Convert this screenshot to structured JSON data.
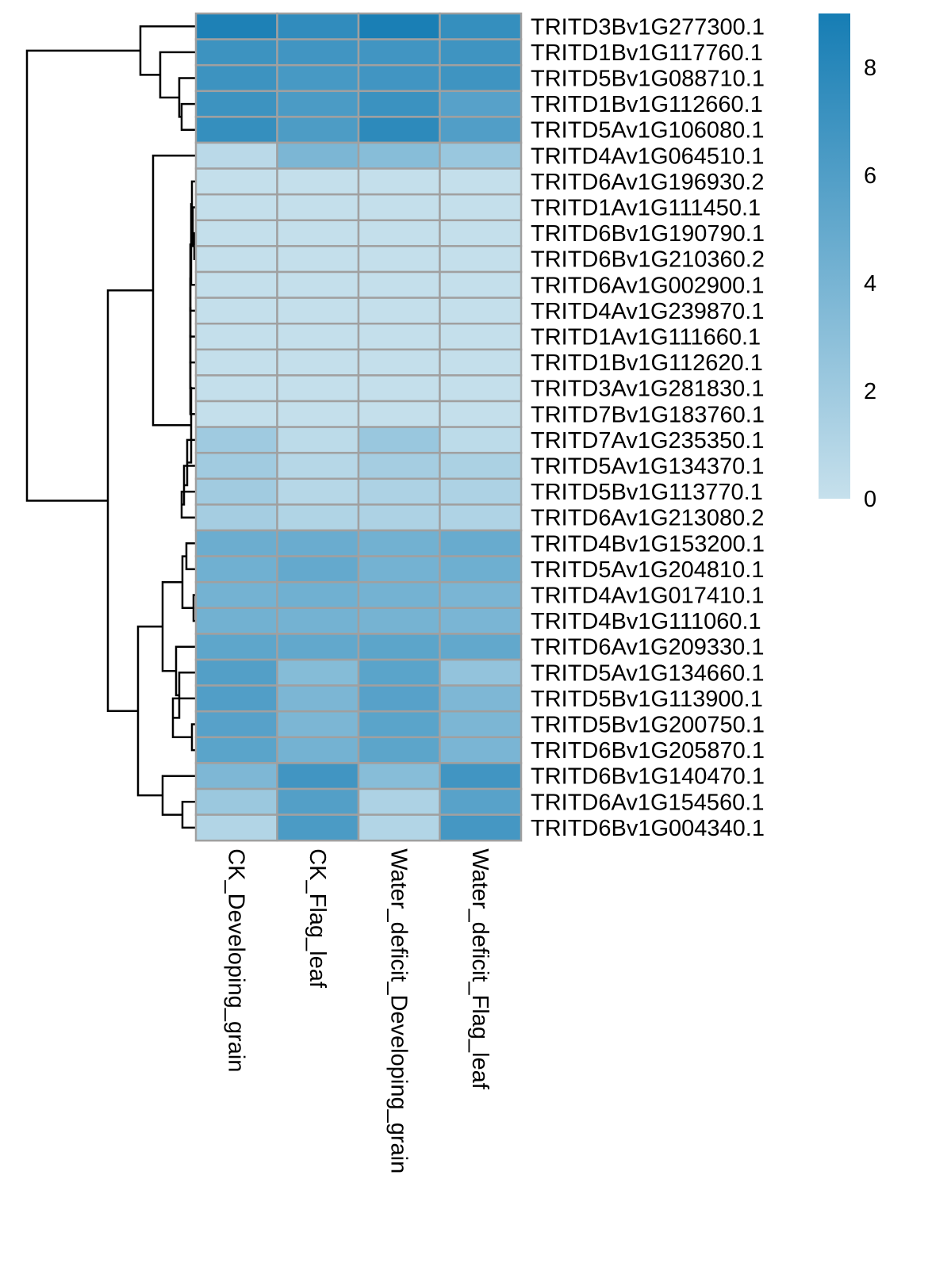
{
  "chart_data": {
    "type": "heatmap",
    "title": "",
    "columns": [
      "CK_Developing_grain",
      "CK_Flag_leaf",
      "Water_deficit_Developing_grain",
      "Water_deficit_Flag_leaf"
    ],
    "rows": [
      "TRITD3Bv1G277300.1",
      "TRITD1Bv1G117760.1",
      "TRITD5Bv1G088710.1",
      "TRITD1Bv1G112660.1",
      "TRITD5Av1G106080.1",
      "TRITD4Av1G064510.1",
      "TRITD6Av1G196930.2",
      "TRITD1Av1G111450.1",
      "TRITD6Bv1G190790.1",
      "TRITD6Bv1G210360.2",
      "TRITD6Av1G002900.1",
      "TRITD4Av1G239870.1",
      "TRITD1Av1G111660.1",
      "TRITD1Bv1G112620.1",
      "TRITD3Av1G281830.1",
      "TRITD7Bv1G183760.1",
      "TRITD7Av1G235350.1",
      "TRITD5Av1G134370.1",
      "TRITD5Bv1G113770.1",
      "TRITD6Av1G213080.2",
      "TRITD4Bv1G153200.1",
      "TRITD5Av1G204810.1",
      "TRITD4Av1G017410.1",
      "TRITD4Bv1G111060.1",
      "TRITD6Av1G209330.1",
      "TRITD5Av1G134660.1",
      "TRITD5Bv1G113900.1",
      "TRITD5Bv1G200750.1",
      "TRITD6Bv1G205870.1",
      "TRITD6Bv1G140470.1",
      "TRITD6Av1G154560.1",
      "TRITD6Bv1G004340.1"
    ],
    "values": [
      [
        8.6,
        7.6,
        8.8,
        7.4
      ],
      [
        7.0,
        6.8,
        6.8,
        6.9
      ],
      [
        7.0,
        6.5,
        6.8,
        6.9
      ],
      [
        7.0,
        6.3,
        7.1,
        5.7
      ],
      [
        7.4,
        6.2,
        7.8,
        6.0
      ],
      [
        0.6,
        3.8,
        3.2,
        2.3
      ],
      [
        0.1,
        0.1,
        0.1,
        0.1
      ],
      [
        0.1,
        0.1,
        0.1,
        0.1
      ],
      [
        0.1,
        0.1,
        0.1,
        0.1
      ],
      [
        0.1,
        0.1,
        0.1,
        0.1
      ],
      [
        0.1,
        0.1,
        0.1,
        0.1
      ],
      [
        0.1,
        0.1,
        0.1,
        0.1
      ],
      [
        0.1,
        0.1,
        0.1,
        0.1
      ],
      [
        0.1,
        0.1,
        0.1,
        0.1
      ],
      [
        0.1,
        0.1,
        0.1,
        0.1
      ],
      [
        0.1,
        0.1,
        0.1,
        0.1
      ],
      [
        2.0,
        0.5,
        2.3,
        0.5
      ],
      [
        1.9,
        0.8,
        1.7,
        1.4
      ],
      [
        1.9,
        0.8,
        1.3,
        1.3
      ],
      [
        1.7,
        1.1,
        1.3,
        1.2
      ],
      [
        4.6,
        4.7,
        4.3,
        4.8
      ],
      [
        4.4,
        5.0,
        4.2,
        4.5
      ],
      [
        4.2,
        4.4,
        4.2,
        3.9
      ],
      [
        4.3,
        4.2,
        4.1,
        3.9
      ],
      [
        5.3,
        5.1,
        5.4,
        5.1
      ],
      [
        5.9,
        3.3,
        5.5,
        2.6
      ],
      [
        6.0,
        3.8,
        5.7,
        3.7
      ],
      [
        5.7,
        3.8,
        5.5,
        3.8
      ],
      [
        5.5,
        4.2,
        5.4,
        3.9
      ],
      [
        3.7,
        6.8,
        3.2,
        6.8
      ],
      [
        2.2,
        5.9,
        1.3,
        5.6
      ],
      [
        1.0,
        6.3,
        1.0,
        6.6
      ]
    ],
    "color_scale": {
      "min": 0,
      "max": 9,
      "low_color": "#c6e0ec",
      "high_color": "#167db4",
      "ticks": [
        0,
        2,
        4,
        6,
        8
      ]
    },
    "row_dendrogram": true,
    "cell_border_color": "#a0a0a0"
  }
}
